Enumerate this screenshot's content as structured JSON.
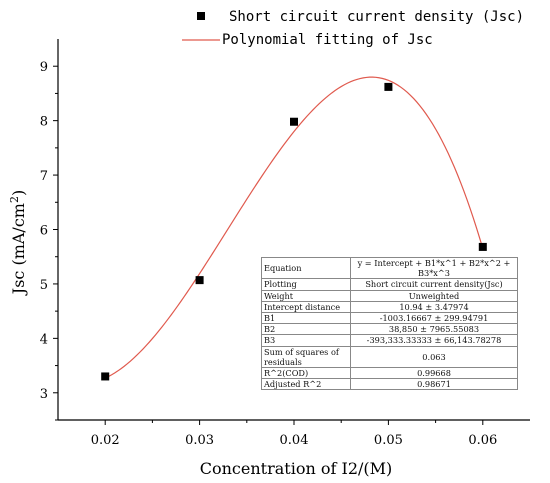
{
  "chart_data": {
    "type": "scatter",
    "xlabel": "Concentration of I2/(M)",
    "ylabel_main": "Jsc (mA/cm",
    "ylabel_sup": "2",
    "ylabel_close": ")",
    "xlim": [
      0.015,
      0.065
    ],
    "ylim": [
      2.5,
      9.5
    ],
    "xticks": [
      "0.02",
      "0.03",
      "0.04",
      "0.05",
      "0.06"
    ],
    "yticks": [
      "3",
      "4",
      "5",
      "6",
      "7",
      "8",
      "9"
    ],
    "series": [
      {
        "name": "Short circuit current density (Jsc)",
        "kind": "scatter",
        "color": "#000000",
        "x": [
          0.02,
          0.03,
          0.04,
          0.05,
          0.06
        ],
        "y": [
          3.3,
          5.07,
          7.98,
          8.62,
          5.68
        ]
      },
      {
        "name": "Polynomial fitting of Jsc",
        "kind": "line",
        "color": "#e05a4e",
        "fit": {
          "intercept": 10.94,
          "b1": -1003.16667,
          "b2": 38850,
          "b3": -393333.33333
        }
      }
    ],
    "legend_position": "top",
    "stats_table": [
      {
        "key": "Equation",
        "value": "y = Intercept + B1*x^1 + B2*x^2 + B3*x^3"
      },
      {
        "key": "Plotting",
        "value": "Short circuit current density(Jsc)"
      },
      {
        "key": "Weight",
        "value": "Unweighted"
      },
      {
        "key": "Intercept distance",
        "value": "10.94 ± 3.47974"
      },
      {
        "key": "B1",
        "value": "-1003.16667 ± 299.94791"
      },
      {
        "key": "B2",
        "value": "38,850 ± 7965.55083"
      },
      {
        "key": "B3",
        "value": "-393,333.33333 ± 66,143.78278"
      },
      {
        "key": "Sum of squares of residuals",
        "value": "0.063"
      },
      {
        "key": "R^2(COD)",
        "value": "0.99668"
      },
      {
        "key": "Adjusted R^2",
        "value": "0.98671"
      }
    ]
  }
}
